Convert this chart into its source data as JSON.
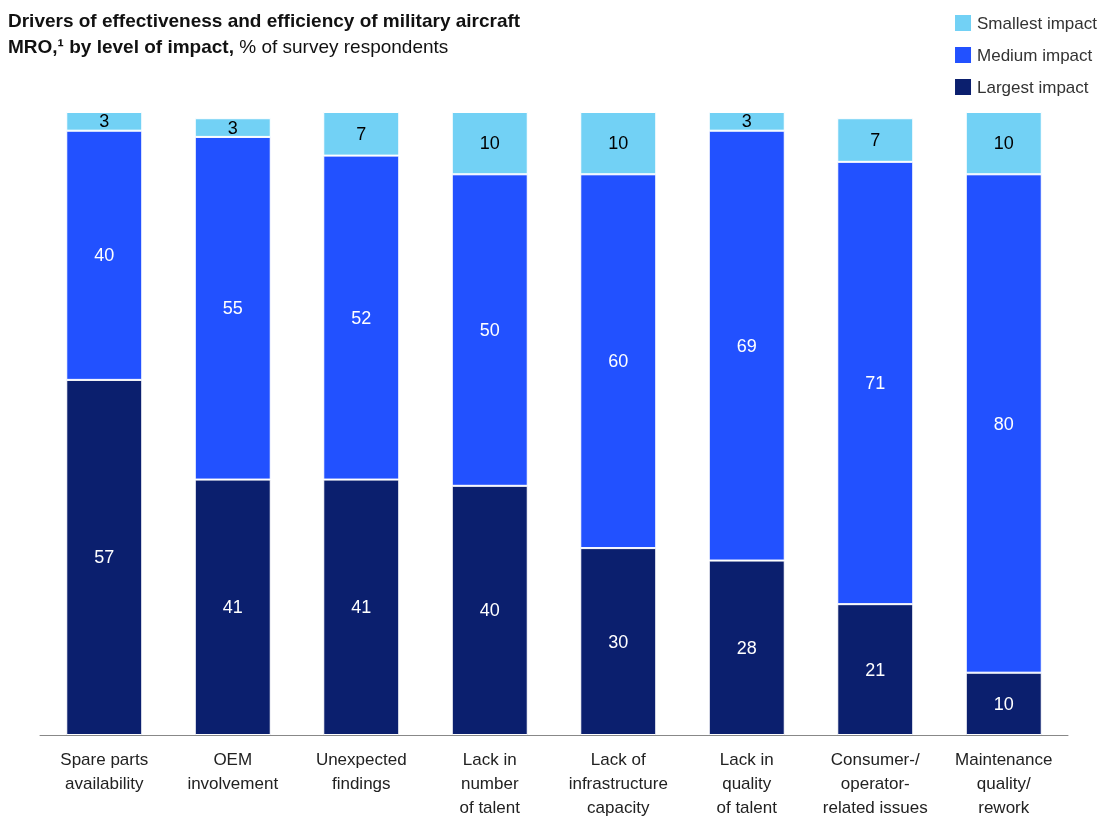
{
  "chart_data": {
    "type": "bar",
    "stacked": true,
    "title": "Drivers of effectiveness and efficiency of military aircraft MRO,¹ by level of impact,",
    "subtitle": "% of survey respondents",
    "categories": [
      "Spare parts\navailability",
      "OEM\ninvolvement",
      "Unexpected\nfindings",
      "Lack in\nnumber\nof talent",
      "Lack of\ninfrastructure\ncapacity",
      "Lack in\nquality\nof talent",
      "Consumer-/\noperator-\nrelated issues",
      "Maintenance\nquality/\nrework"
    ],
    "series": [
      {
        "name": "Largest impact",
        "color": "#0b1f6e",
        "values": [
          57,
          41,
          41,
          40,
          30,
          28,
          21,
          10
        ]
      },
      {
        "name": "Medium impact",
        "color": "#2251ff",
        "values": [
          40,
          55,
          52,
          50,
          60,
          69,
          71,
          80
        ]
      },
      {
        "name": "Smallest impact",
        "color": "#72d1f5",
        "values": [
          3,
          3,
          7,
          10,
          10,
          3,
          7,
          10
        ]
      }
    ],
    "data_labels": true,
    "legend": "top right",
    "grid": false
  }
}
